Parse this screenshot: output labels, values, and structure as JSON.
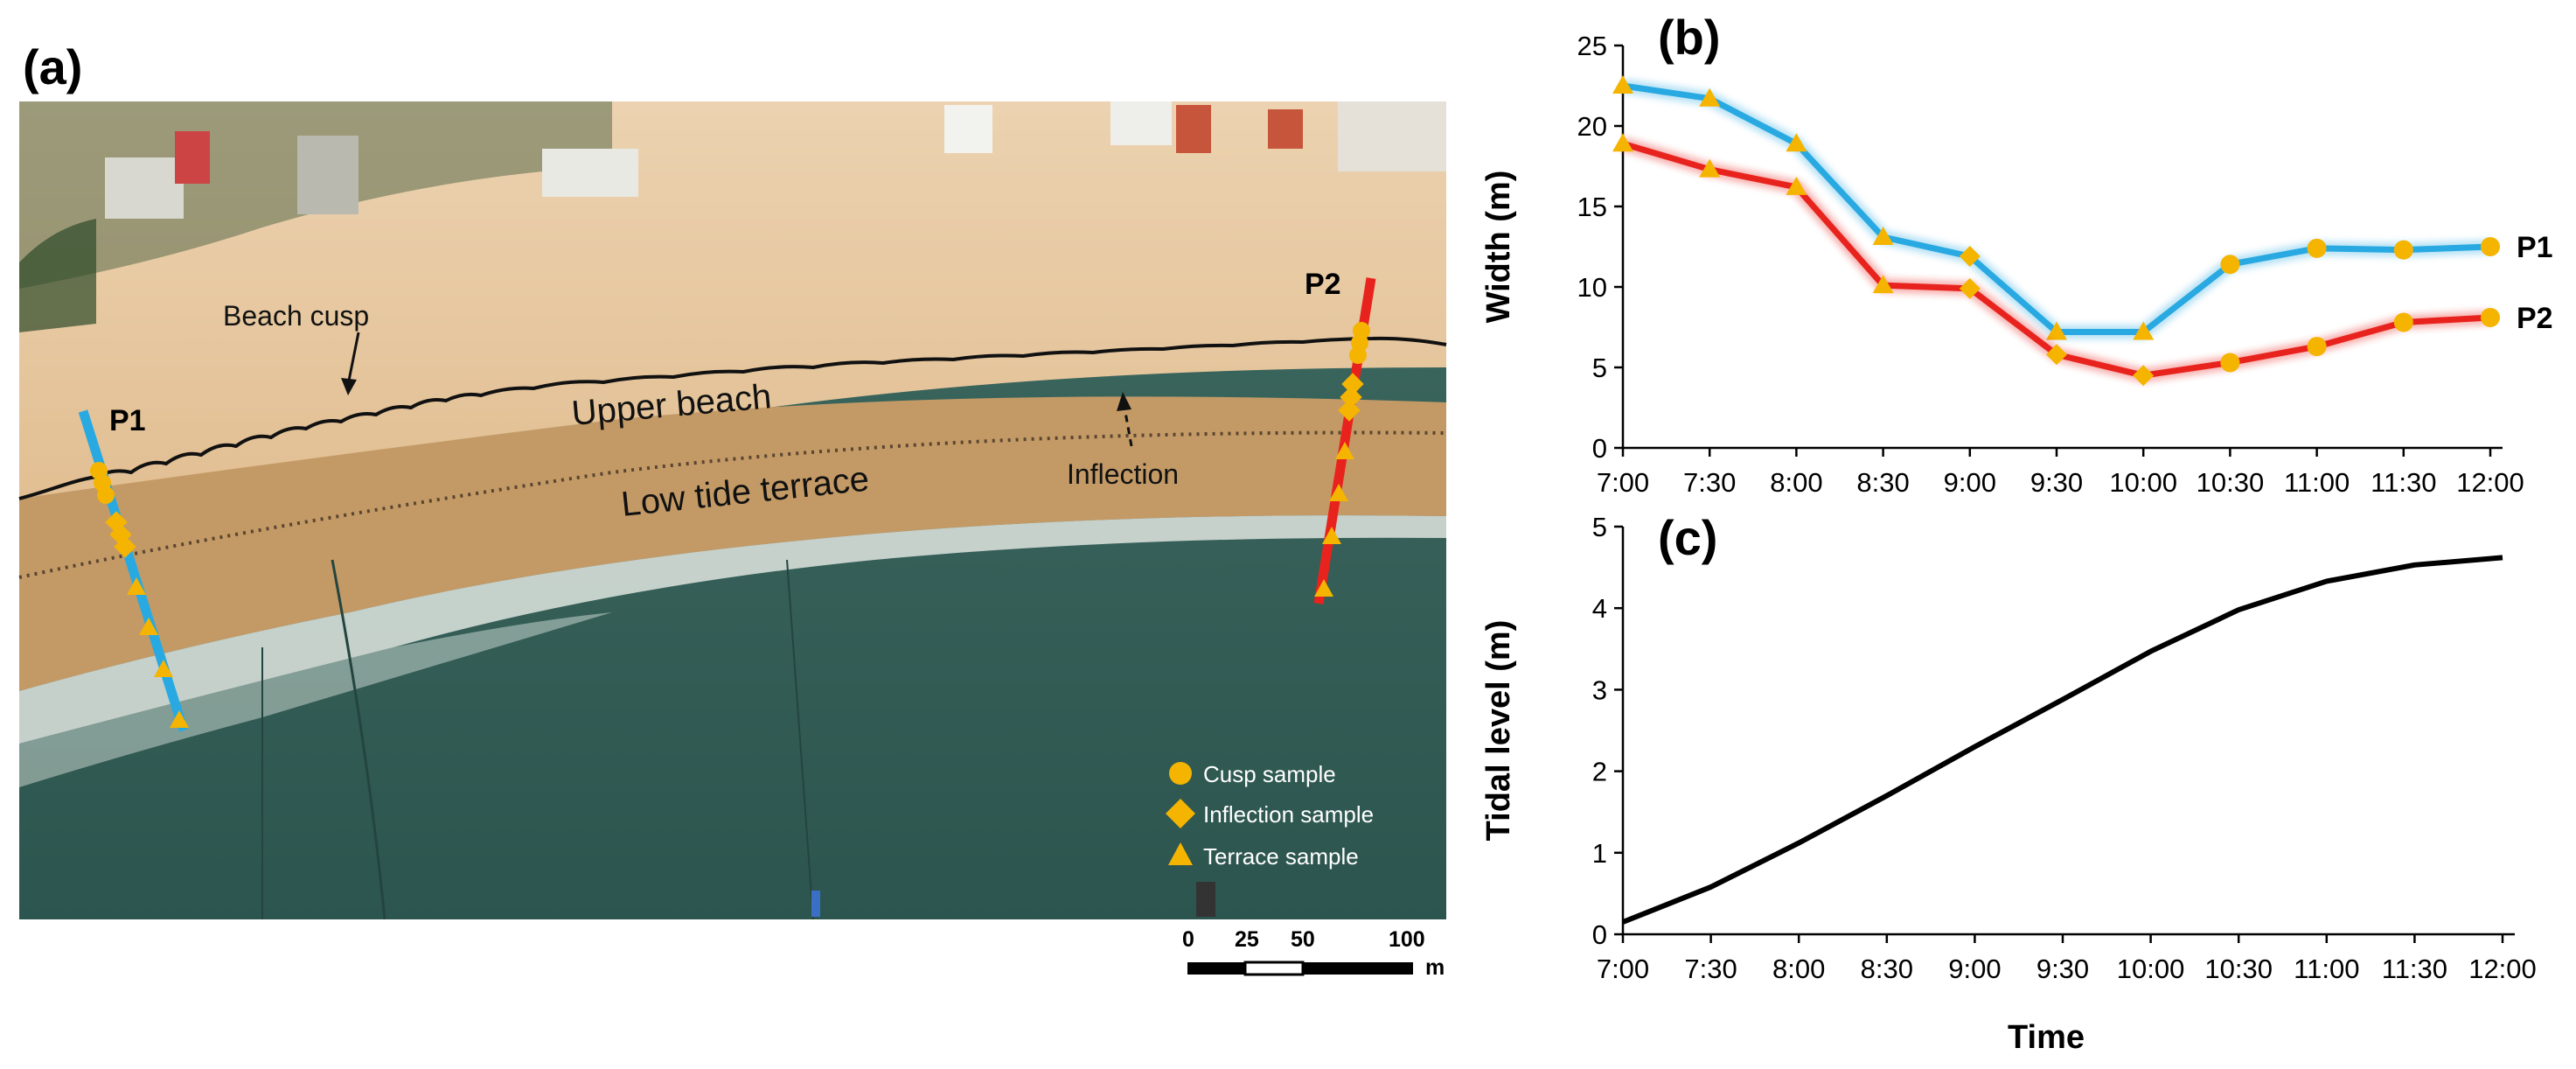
{
  "panel_a": {
    "label": "(a)",
    "annotations": {
      "beach_cusp": "Beach cusp",
      "upper_beach": "Upper beach",
      "low_tide_terrace": "Low tide terrace",
      "inflection": "Inflection",
      "p1": "P1",
      "p2": "P2"
    },
    "legend": {
      "cusp": "Cusp sample",
      "inflection": "Inflection sample",
      "terrace": "Terrace sample"
    },
    "scale": {
      "ticks": [
        "0",
        "25",
        "50",
        "100"
      ],
      "unit": "m"
    },
    "colors": {
      "p1": "#29a9e1",
      "p2": "#e8231d",
      "marker": "#f5b400"
    }
  },
  "chart_data": [
    {
      "type": "line",
      "label": "(b)",
      "title": "",
      "xlabel": "",
      "ylabel": "Width (m)",
      "categories": [
        "7:00",
        "7:30",
        "8:00",
        "8:30",
        "9:00",
        "9:30",
        "10:00",
        "10:30",
        "11:00",
        "11:30",
        "12:00"
      ],
      "ylim": [
        0,
        25
      ],
      "yticks": [
        "0",
        "5",
        "10",
        "15",
        "20",
        "25"
      ],
      "series": [
        {
          "name": "P1",
          "color": "#29a9e1",
          "values": [
            22.5,
            21.7,
            18.9,
            13.1,
            11.9,
            7.2,
            7.2,
            11.4,
            12.4,
            12.3,
            12.5
          ],
          "markers": [
            "triangle",
            "triangle",
            "triangle",
            "triangle",
            "diamond",
            "triangle",
            "triangle",
            "circle",
            "circle",
            "circle",
            "circle"
          ]
        },
        {
          "name": "P2",
          "color": "#e8231d",
          "values": [
            18.9,
            17.3,
            16.2,
            10.1,
            9.9,
            5.8,
            4.5,
            5.3,
            6.3,
            7.8,
            8.1
          ],
          "markers": [
            "triangle",
            "triangle",
            "triangle",
            "triangle",
            "diamond",
            "diamond",
            "diamond",
            "circle",
            "circle",
            "circle",
            "circle"
          ]
        }
      ]
    },
    {
      "type": "line",
      "label": "(c)",
      "title": "",
      "xlabel": "Time",
      "ylabel": "Tidal level (m)",
      "categories": [
        "7:00",
        "7:30",
        "8:00",
        "8:30",
        "9:00",
        "9:30",
        "10:00",
        "10:30",
        "11:00",
        "11:30",
        "12:00"
      ],
      "ylim": [
        0,
        5
      ],
      "yticks": [
        "0",
        "1",
        "2",
        "3",
        "4",
        "5"
      ],
      "series": [
        {
          "name": "Tidal level",
          "color": "#000000",
          "values": [
            0.15,
            0.58,
            1.12,
            1.7,
            2.3,
            2.88,
            3.47,
            3.98,
            4.33,
            4.53,
            4.62
          ]
        }
      ]
    }
  ]
}
